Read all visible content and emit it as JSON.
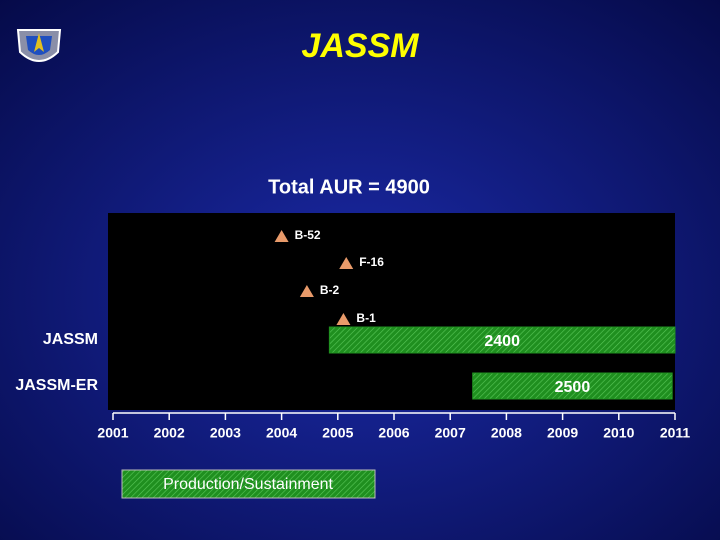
{
  "chart_data": {
    "type": "gantt",
    "title": "JASSM",
    "subtitle": "Total AUR = 4900",
    "xlim": [
      2001,
      2011
    ],
    "xticks": [
      2001,
      2002,
      2003,
      2004,
      2005,
      2006,
      2007,
      2008,
      2009,
      2010,
      2011
    ],
    "milestones": [
      {
        "name": "B-52",
        "x": 2004.0
      },
      {
        "name": "F-16",
        "x": 2005.15
      },
      {
        "name": "B-2",
        "x": 2004.45
      },
      {
        "name": "B-1",
        "x": 2005.1
      }
    ],
    "milestone_color": "#e89a6a",
    "tasks": [
      {
        "name": "JASSM",
        "start": 2004.85,
        "end": 2011,
        "quantity": 2400
      },
      {
        "name": "JASSM-ER",
        "start": 2007.4,
        "end": 2010.95,
        "quantity": 2500
      }
    ],
    "color": "#1f8f1f",
    "legend": {
      "label": "Production/Sustainment"
    }
  }
}
